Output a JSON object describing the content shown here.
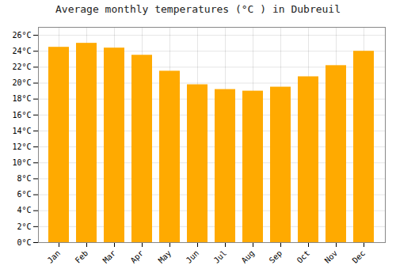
{
  "chart_data": {
    "type": "bar",
    "title": "Average monthly temperatures (°C ) in Dubreuil",
    "categories": [
      "Jan",
      "Feb",
      "Mar",
      "Apr",
      "May",
      "Jun",
      "Jul",
      "Aug",
      "Sep",
      "Oct",
      "Nov",
      "Dec"
    ],
    "values": [
      24.5,
      25.0,
      24.4,
      23.5,
      21.5,
      19.8,
      19.2,
      19.0,
      19.5,
      20.8,
      22.2,
      24.0
    ],
    "color": "#FFAA00",
    "ylim": [
      0,
      27
    ],
    "yticks": [
      {
        "value": 0,
        "label": "0°C"
      },
      {
        "value": 2,
        "label": "2°C"
      },
      {
        "value": 4,
        "label": "4°C"
      },
      {
        "value": 6,
        "label": "6°C"
      },
      {
        "value": 8,
        "label": "8°C"
      },
      {
        "value": 10,
        "label": "10°C"
      },
      {
        "value": 12,
        "label": "12°C"
      },
      {
        "value": 14,
        "label": "14°C"
      },
      {
        "value": 16,
        "label": "16°C"
      },
      {
        "value": 18,
        "label": "18°C"
      },
      {
        "value": 20,
        "label": "20°C"
      },
      {
        "value": 22,
        "label": "22°C"
      },
      {
        "value": 24,
        "label": "24°C"
      },
      {
        "value": 26,
        "label": "26°C"
      }
    ],
    "grid": true
  }
}
